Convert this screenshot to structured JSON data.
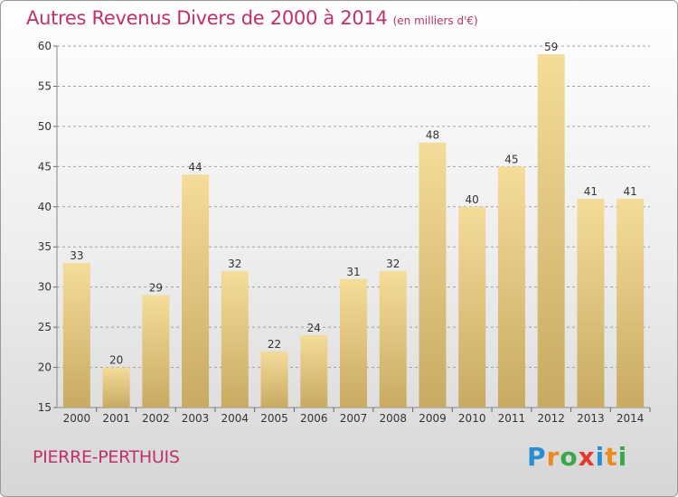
{
  "title": "Autres Revenus Divers de 2000 à 2014",
  "title_unit": "(en milliers d'€)",
  "place": "PIERRE-PERTHUIS",
  "logo": {
    "letters": [
      "P",
      "r",
      "o",
      "x",
      "i",
      "t",
      "i"
    ],
    "colors": [
      "#2a8fd0",
      "#f08a1c",
      "#3aa84a",
      "#e23a2a",
      "#2a8fd0",
      "#f08a1c",
      "#3aa84a"
    ]
  },
  "colors": {
    "title": "#c0306a",
    "bar_top": "#f5dc9a",
    "bar_bottom": "#c8aa62",
    "grid": "#a0a0a0"
  },
  "chart_data": {
    "type": "bar",
    "title": "Autres Revenus Divers de 2000 à 2014",
    "subtitle": "(en milliers d'€)",
    "xlabel": "",
    "ylabel": "",
    "categories": [
      "2000",
      "2001",
      "2002",
      "2003",
      "2004",
      "2005",
      "2006",
      "2007",
      "2008",
      "2009",
      "2010",
      "2011",
      "2012",
      "2013",
      "2014"
    ],
    "values": [
      33,
      20,
      29,
      44,
      32,
      22,
      24,
      31,
      32,
      48,
      40,
      45,
      59,
      41,
      41
    ],
    "ylim": [
      15,
      60
    ],
    "yticks": [
      15,
      20,
      25,
      30,
      35,
      40,
      45,
      50,
      55,
      60
    ],
    "grid": "horizontal dashed",
    "data_labels": true
  }
}
